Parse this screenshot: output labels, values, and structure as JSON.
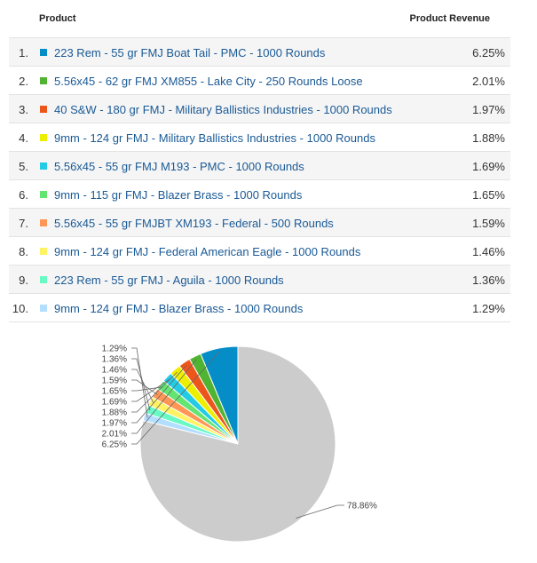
{
  "table": {
    "header_product": "Product",
    "header_revenue": "Product Revenue",
    "rows": [
      {
        "index": "1.",
        "name": "223 Rem - 55 gr FMJ Boat Tail - PMC - 1000 Rounds",
        "value": "6.25%",
        "color": "#058dc7"
      },
      {
        "index": "2.",
        "name": "5.56x45 - 62 gr FMJ XM855 - Lake City - 250 Rounds Loose",
        "value": "2.01%",
        "color": "#50b432"
      },
      {
        "index": "3.",
        "name": "40 S&W - 180 gr FMJ - Military Ballistics Industries - 1000 Rounds",
        "value": "1.97%",
        "color": "#ed561b"
      },
      {
        "index": "4.",
        "name": "9mm - 124 gr FMJ - Military Ballistics Industries - 1000 Rounds",
        "value": "1.88%",
        "color": "#edef00"
      },
      {
        "index": "5.",
        "name": "5.56x45 - 55 gr FMJ M193 - PMC - 1000 Rounds",
        "value": "1.69%",
        "color": "#24cbe5"
      },
      {
        "index": "6.",
        "name": "9mm - 115 gr FMJ - Blazer Brass - 1000 Rounds",
        "value": "1.65%",
        "color": "#64e572"
      },
      {
        "index": "7.",
        "name": "5.56x45 - 55 gr FMJBT XM193 - Federal - 500 Rounds",
        "value": "1.59%",
        "color": "#ff9655"
      },
      {
        "index": "8.",
        "name": "9mm - 124 gr FMJ - Federal American Eagle - 1000 Rounds",
        "value": "1.46%",
        "color": "#fff263"
      },
      {
        "index": "9.",
        "name": "223 Rem - 55 gr FMJ - Aguila - 1000 Rounds",
        "value": "1.36%",
        "color": "#6af9c4"
      },
      {
        "index": "10.",
        "name": "9mm - 124 gr FMJ - Blazer Brass - 1000 Rounds",
        "value": "1.29%",
        "color": "#b2deff"
      }
    ]
  },
  "chart_data": {
    "type": "pie",
    "title": "",
    "slices": [
      {
        "label": "6.25%",
        "value": 6.25,
        "color": "#058dc7"
      },
      {
        "label": "2.01%",
        "value": 2.01,
        "color": "#50b432"
      },
      {
        "label": "1.97%",
        "value": 1.97,
        "color": "#ed561b"
      },
      {
        "label": "1.88%",
        "value": 1.88,
        "color": "#edef00"
      },
      {
        "label": "1.69%",
        "value": 1.69,
        "color": "#24cbe5"
      },
      {
        "label": "1.65%",
        "value": 1.65,
        "color": "#64e572"
      },
      {
        "label": "1.59%",
        "value": 1.59,
        "color": "#ff9655"
      },
      {
        "label": "1.46%",
        "value": 1.46,
        "color": "#fff263"
      },
      {
        "label": "1.36%",
        "value": 1.36,
        "color": "#6af9c4"
      },
      {
        "label": "1.29%",
        "value": 1.29,
        "color": "#b2deff"
      },
      {
        "label": "78.86%",
        "value": 78.86,
        "color": "#cccccc"
      }
    ]
  }
}
